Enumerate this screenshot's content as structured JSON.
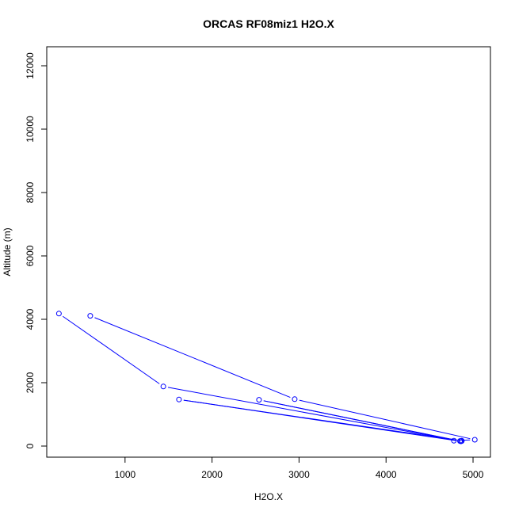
{
  "chart_data": {
    "type": "line",
    "title": "ORCAS RF08miz1 H2O.X",
    "xlabel": "H2O.X",
    "ylabel": "Altitude (m)",
    "xlim": [
      100,
      5200
    ],
    "ylim": [
      -350,
      12600
    ],
    "x_ticks": [
      1000,
      2000,
      3000,
      4000,
      5000
    ],
    "y_ticks": [
      0,
      2000,
      4000,
      6000,
      8000,
      10000,
      12000
    ],
    "grid": false,
    "legend": "none",
    "series": [
      {
        "color": "#0000ff",
        "marker": "open-circle",
        "x": [
          600,
          2950,
          5020,
          4780,
          4870,
          4870,
          1620,
          4860,
          2540,
          4850,
          1440,
          240
        ],
        "y": [
          4110,
          1480,
          200,
          170,
          160,
          170,
          1470,
          150,
          1460,
          160,
          1880,
          4180
        ]
      }
    ]
  }
}
